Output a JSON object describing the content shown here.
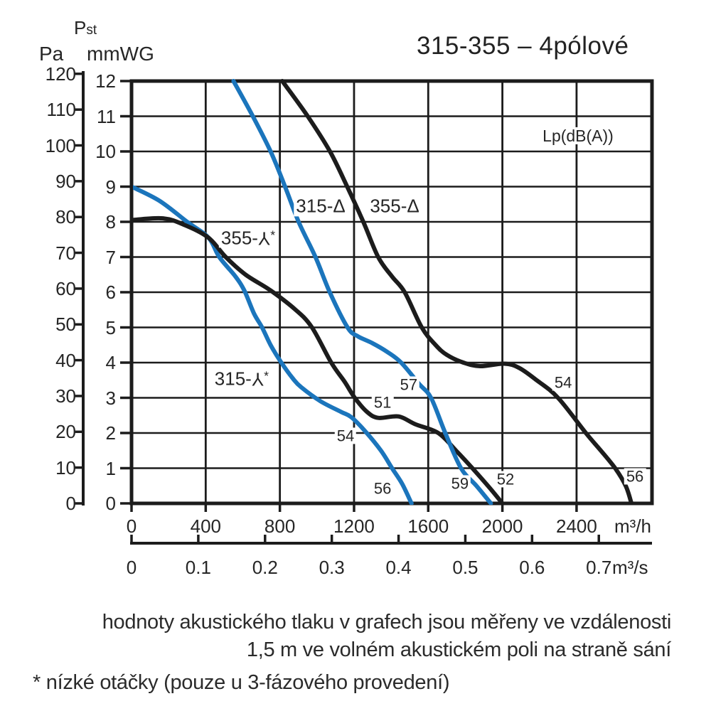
{
  "header": {
    "pst_main": "P",
    "pst_sub": "st",
    "pa_label": "Pa",
    "mmwg_label": "mmWG"
  },
  "chart_data": {
    "type": "line",
    "title": "315-355 – 4pólové",
    "legend": {
      "text": "Lp(dB(A))",
      "q": 2408,
      "p": 10.45
    },
    "y_axis_pa": {
      "label": "Pa",
      "ticks": [
        120,
        110,
        100,
        90,
        80,
        70,
        60,
        50,
        40,
        30,
        20,
        10,
        0
      ]
    },
    "y_axis_mmwg": {
      "label": "mmWG",
      "quantity": "Pst",
      "ticks": [
        12,
        11,
        10,
        9,
        8,
        7,
        6,
        5,
        4,
        3,
        2,
        1,
        0
      ]
    },
    "x_axis_m3h": {
      "unit": "m³/h",
      "ticks": [
        0,
        400,
        800,
        1200,
        1600,
        2000,
        2400
      ],
      "range": [
        0,
        2807
      ]
    },
    "x_axis_m3s": {
      "unit": "m³/s",
      "ticks": [
        "0",
        "0.1",
        "0.2",
        "0.3",
        "0.4",
        "0.5",
        "0.6",
        "0.7"
      ]
    },
    "pressure_range_mmwg": [
      0,
      12
    ],
    "series": [
      {
        "name": "315-⅄*",
        "color": "#1b75bc",
        "points": [
          [
            0,
            9.0
          ],
          [
            150,
            8.6
          ],
          [
            300,
            8.0
          ],
          [
            415,
            7.55
          ],
          [
            473,
            7.0
          ],
          [
            560,
            6.45
          ],
          [
            608,
            6.05
          ],
          [
            660,
            5.4
          ],
          [
            704,
            5.0
          ],
          [
            750,
            4.5
          ],
          [
            808,
            4.0
          ],
          [
            870,
            3.55
          ],
          [
            915,
            3.3
          ],
          [
            1020,
            2.9
          ],
          [
            1130,
            2.6
          ],
          [
            1185,
            2.45
          ],
          [
            1260,
            2.05
          ],
          [
            1345,
            1.5
          ],
          [
            1405,
            1.0
          ],
          [
            1460,
            0.55
          ],
          [
            1510,
            0
          ]
        ]
      },
      {
        "name": "355-⅄*",
        "color": "#1c1c1c",
        "points": [
          [
            0,
            8.05
          ],
          [
            170,
            8.1
          ],
          [
            290,
            7.9
          ],
          [
            415,
            7.55
          ],
          [
            508,
            7.0
          ],
          [
            615,
            6.5
          ],
          [
            750,
            6.05
          ],
          [
            885,
            5.5
          ],
          [
            973,
            5.0
          ],
          [
            1077,
            4.0
          ],
          [
            1150,
            3.45
          ],
          [
            1204,
            3.0
          ],
          [
            1270,
            2.6
          ],
          [
            1330,
            2.43
          ],
          [
            1440,
            2.47
          ],
          [
            1530,
            2.25
          ],
          [
            1654,
            2.0
          ],
          [
            1750,
            1.5
          ],
          [
            1838,
            1.0
          ],
          [
            1930,
            0.45
          ],
          [
            2000,
            0
          ]
        ]
      },
      {
        "name": "315-Δ",
        "color": "#1b75bc",
        "points": [
          [
            550,
            12
          ],
          [
            654,
            11
          ],
          [
            750,
            10
          ],
          [
            828,
            9
          ],
          [
            901,
            8
          ],
          [
            992,
            7
          ],
          [
            1069,
            6
          ],
          [
            1165,
            5
          ],
          [
            1220,
            4.75
          ],
          [
            1300,
            4.55
          ],
          [
            1380,
            4.3
          ],
          [
            1454,
            4.0
          ],
          [
            1550,
            3.4
          ],
          [
            1615,
            3.0
          ],
          [
            1692,
            2.0
          ],
          [
            1777,
            1.0
          ],
          [
            1860,
            0.5
          ],
          [
            1938,
            0
          ]
        ]
      },
      {
        "name": "355-Δ",
        "color": "#1c1c1c",
        "points": [
          [
            813,
            12
          ],
          [
            950,
            11
          ],
          [
            1070,
            10
          ],
          [
            1163,
            9
          ],
          [
            1250,
            8
          ],
          [
            1330,
            7
          ],
          [
            1404,
            6.45
          ],
          [
            1473,
            6.0
          ],
          [
            1565,
            5.0
          ],
          [
            1640,
            4.5
          ],
          [
            1700,
            4.22
          ],
          [
            1790,
            4.0
          ],
          [
            1880,
            3.9
          ],
          [
            2010,
            3.97
          ],
          [
            2090,
            3.85
          ],
          [
            2185,
            3.5
          ],
          [
            2300,
            3.0
          ],
          [
            2450,
            2.0
          ],
          [
            2531,
            1.5
          ],
          [
            2608,
            1.0
          ],
          [
            2665,
            0.5
          ],
          [
            2696,
            0
          ]
        ]
      }
    ],
    "curve_labels": [
      {
        "text": "315-Δ",
        "q": 1020,
        "p": 8.44
      },
      {
        "text": "355-Δ",
        "q": 1419,
        "p": 8.44
      },
      {
        "text": "355-⅄*",
        "q": 629,
        "p": 7.54
      },
      {
        "text": "315-⅄*",
        "q": 594,
        "p": 3.54
      }
    ],
    "db_labels": [
      {
        "text": "54",
        "q": 1154,
        "p": 1.92
      },
      {
        "text": "56",
        "q": 1354,
        "p": 0.42
      },
      {
        "text": "51",
        "q": 1354,
        "p": 2.87
      },
      {
        "text": "52",
        "q": 2017,
        "p": 0.69
      },
      {
        "text": "57",
        "q": 1495,
        "p": 3.37
      },
      {
        "text": "59",
        "q": 1771,
        "p": 0.57
      },
      {
        "text": "54",
        "q": 2328,
        "p": 3.43
      },
      {
        "text": "56",
        "q": 2715,
        "p": 0.77
      }
    ]
  },
  "footer": {
    "line1": "hodnoty akustického tlaku v grafech jsou měřeny ve vzdálenosti",
    "line2": "1,5 m ve volném akustickém poli na straně sání",
    "note": "* nízké otáčky (pouze u 3-fázového provedení)"
  }
}
